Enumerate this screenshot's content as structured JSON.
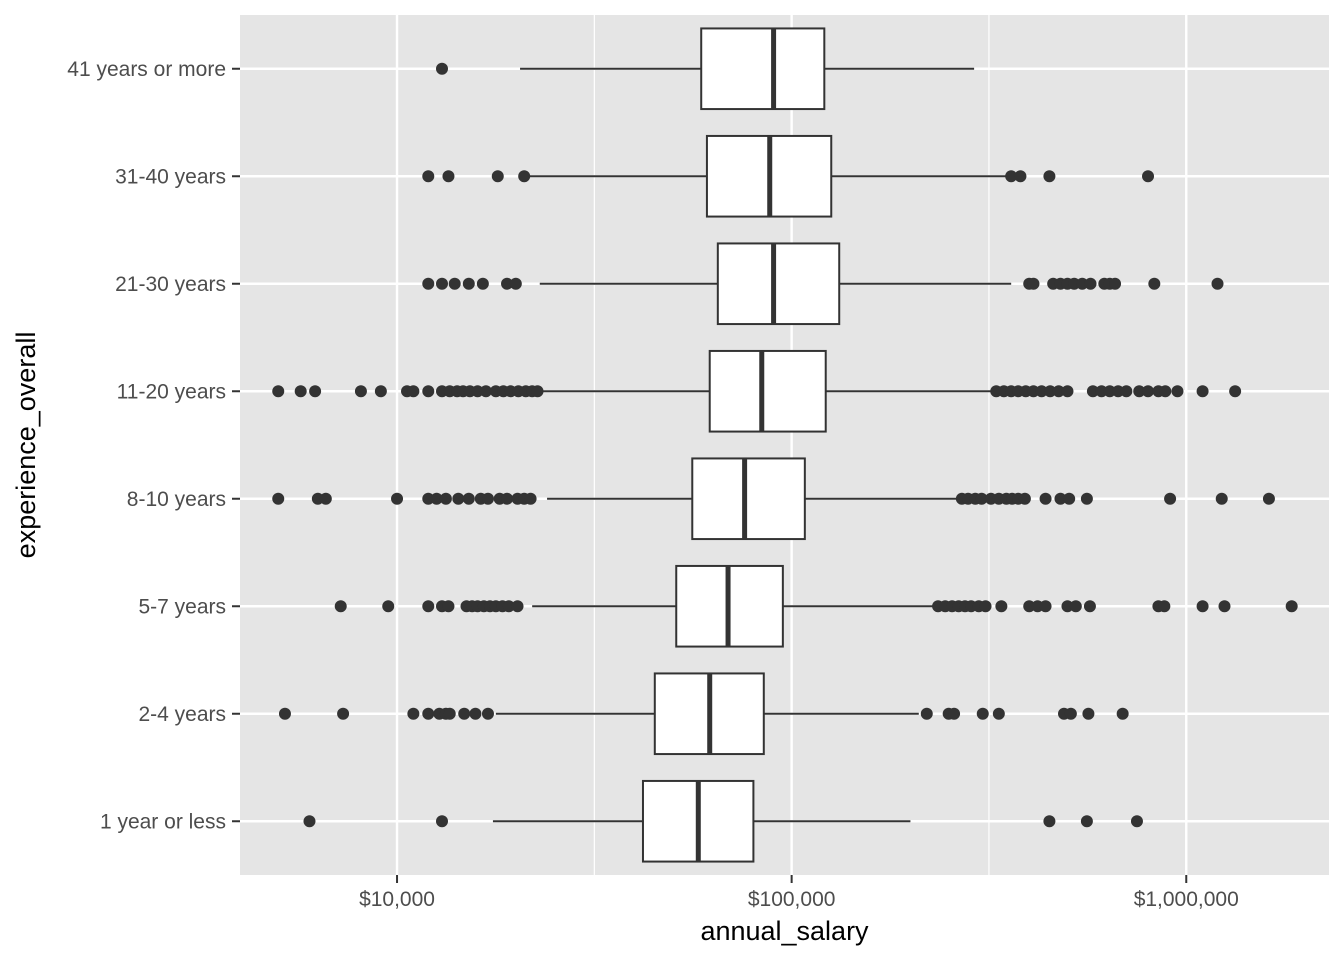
{
  "chart_data": {
    "type": "boxplot",
    "orientation": "horizontal",
    "xlabel": "annual_salary",
    "ylabel": "experience_overall",
    "x_scale": "log10",
    "xlim": [
      4000,
      2300000
    ],
    "x_ticks": [
      {
        "value": 10000,
        "label": "$10,000"
      },
      {
        "value": 100000,
        "label": "$100,000"
      },
      {
        "value": 1000000,
        "label": "$1,000,000"
      }
    ],
    "x_minor_ticks": [
      31623,
      316228
    ],
    "grid": true,
    "colors": {
      "panel_background": "#e5e5e5",
      "grid_line": "#ffffff",
      "box_fill": "#ffffff",
      "box_stroke": "#333333",
      "outlier": "#333333"
    },
    "categories": [
      "1 year or less",
      "2-4 years",
      "5-7 years",
      "8-10 years",
      "11-20 years",
      "21-30 years",
      "31-40 years",
      "41 years or more"
    ],
    "boxes": [
      {
        "category": "1 year or less",
        "whisker_low": 17500,
        "q1": 42000,
        "median": 58000,
        "q3": 80000,
        "whisker_high": 200000,
        "outliers": [
          6000,
          13000,
          450000,
          560000,
          750000
        ]
      },
      {
        "category": "2-4 years",
        "whisker_low": 17800,
        "q1": 45000,
        "median": 62000,
        "q3": 85000,
        "whisker_high": 210000,
        "outliers": [
          5200,
          7300,
          11000,
          12000,
          12800,
          13300,
          13600,
          14800,
          15800,
          17000,
          220000,
          250000,
          258000,
          305000,
          335000,
          490000,
          510000,
          565000,
          690000
        ]
      },
      {
        "category": "5-7 years",
        "whisker_low": 22000,
        "q1": 51000,
        "median": 69000,
        "q3": 95000,
        "whisker_high": 230000,
        "outliers": [
          7200,
          9500,
          12000,
          13000,
          13500,
          15000,
          15500,
          16000,
          16600,
          17200,
          17800,
          18500,
          19200,
          20200,
          235000,
          245000,
          255000,
          265000,
          275000,
          285000,
          298000,
          310000,
          340000,
          400000,
          420000,
          440000,
          500000,
          525000,
          570000,
          850000,
          880000,
          1100000,
          1250000,
          1850000
        ]
      },
      {
        "category": "8-10 years",
        "whisker_low": 24000,
        "q1": 56000,
        "median": 76000,
        "q3": 108000,
        "whisker_high": 265000,
        "outliers": [
          5000,
          6300,
          6600,
          10000,
          12000,
          12600,
          13300,
          14300,
          15200,
          16300,
          17000,
          18200,
          19000,
          20200,
          21000,
          21800,
          270000,
          280000,
          292000,
          303000,
          320000,
          335000,
          350000,
          362000,
          375000,
          390000,
          440000,
          480000,
          505000,
          560000,
          910000,
          1230000,
          1620000
        ]
      },
      {
        "category": "11-20 years",
        "whisker_low": 22500,
        "q1": 62000,
        "median": 84000,
        "q3": 122000,
        "whisker_high": 320000,
        "outliers": [
          5000,
          5700,
          6200,
          8100,
          9100,
          10600,
          11000,
          12000,
          13000,
          13600,
          14200,
          14700,
          15300,
          16000,
          16800,
          17800,
          18600,
          19400,
          20300,
          21200,
          22000,
          22700,
          330000,
          345000,
          360000,
          375000,
          392000,
          410000,
          430000,
          452000,
          475000,
          500000,
          580000,
          610000,
          640000,
          672000,
          705000,
          760000,
          800000,
          850000,
          885000,
          950000,
          1100000,
          1330000
        ]
      },
      {
        "category": "21-30 years",
        "whisker_low": 23000,
        "q1": 65000,
        "median": 90000,
        "q3": 132000,
        "whisker_high": 360000,
        "outliers": [
          12000,
          13000,
          14000,
          15200,
          16500,
          19000,
          20000,
          400000,
          410000,
          460000,
          480000,
          500000,
          520000,
          545000,
          572000,
          620000,
          640000,
          660000,
          830000,
          1200000
        ]
      },
      {
        "category": "31-40 years",
        "whisker_low": 21000,
        "q1": 61000,
        "median": 88000,
        "q3": 126000,
        "whisker_high": 355000,
        "outliers": [
          12000,
          13500,
          18000,
          21000,
          360000,
          380000,
          450000,
          800000
        ]
      },
      {
        "category": "41 years or more",
        "whisker_low": 20500,
        "q1": 59000,
        "median": 90000,
        "q3": 121000,
        "whisker_high": 290000,
        "outliers": [
          13000
        ]
      }
    ]
  }
}
